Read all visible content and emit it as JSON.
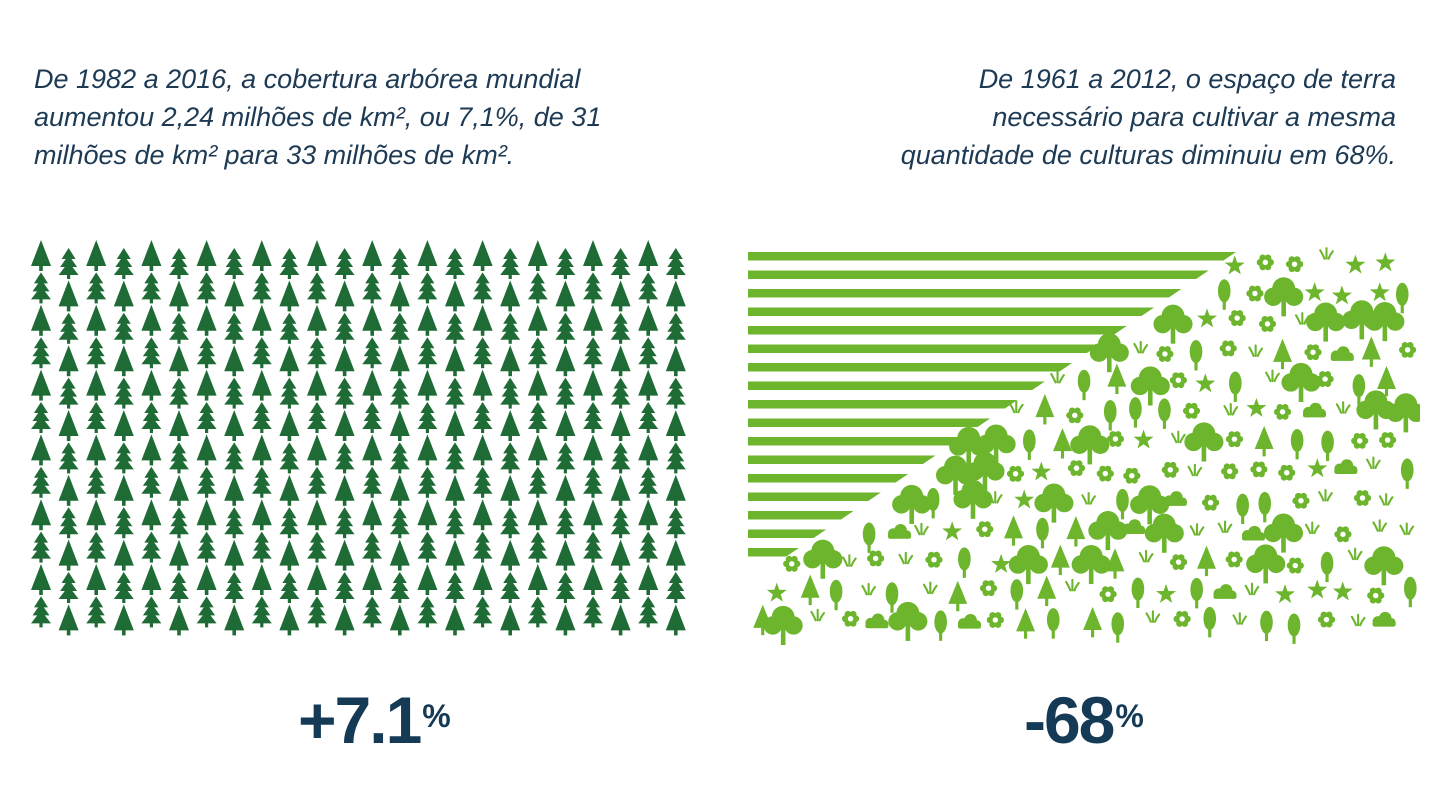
{
  "left": {
    "caption_lines": [
      "De 1982 a 2016, a cobertura arbórea mundial",
      "aumentou 2,24 milhões de km², ou 7,1%, de 31",
      "milhões de km² para 33 milhões de km²."
    ],
    "stat_value": "+7.1",
    "stat_unit": "%"
  },
  "right": {
    "caption_lines": [
      "De 1961 a 2012, o espaço de terra",
      "necessário para cultivar a mesma",
      "quantidade de culturas diminuiu em 68%."
    ],
    "stat_value": "-68",
    "stat_unit": "%"
  },
  "colors": {
    "text": "#1d3a55",
    "stat": "#153a55",
    "forest_green": "#1e6b36",
    "farm_green": "#6cb52d"
  },
  "icons": {
    "forest": "pine-tree-icon",
    "farm_stripes": "field-stripe",
    "farm_nature": [
      "round-tree-icon",
      "pine-tree-icon",
      "flower-icon",
      "grass-icon",
      "bush-icon",
      "star-flower-icon"
    ]
  }
}
